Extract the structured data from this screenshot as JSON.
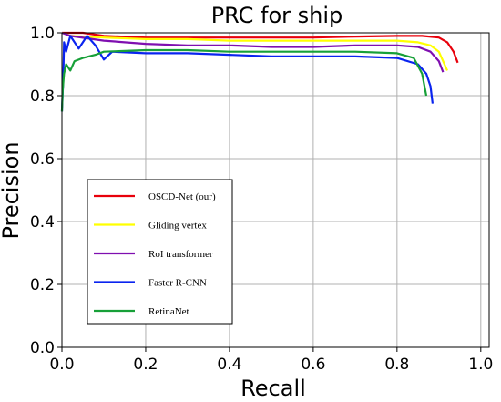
{
  "chart_data": {
    "type": "line",
    "title": "PRC for ship",
    "xlabel": "Recall",
    "ylabel": "Precision",
    "xlim": [
      0,
      1.02
    ],
    "ylim": [
      0,
      1.0
    ],
    "xticks": [
      0.0,
      0.2,
      0.4,
      0.6,
      0.8,
      1.0
    ],
    "yticks": [
      0.0,
      0.2,
      0.4,
      0.6,
      0.8,
      1.0
    ],
    "xtick_labels": [
      "0.0",
      "0.2",
      "0.4",
      "0.6",
      "0.8",
      "1.0"
    ],
    "ytick_labels": [
      "0.0",
      "0.2",
      "0.4",
      "0.6",
      "0.8",
      "1.0"
    ],
    "grid": true,
    "legend_position": "lower-left",
    "series": [
      {
        "name": "OSCD-Net (our)",
        "color": "#e8000b",
        "x": [
          0.0,
          0.005,
          0.02,
          0.05,
          0.1,
          0.2,
          0.3,
          0.4,
          0.5,
          0.6,
          0.7,
          0.8,
          0.86,
          0.9,
          0.92,
          0.935,
          0.945
        ],
        "y": [
          1.0,
          1.0,
          1.0,
          1.0,
          0.99,
          0.985,
          0.985,
          0.985,
          0.985,
          0.985,
          0.988,
          0.99,
          0.99,
          0.985,
          0.97,
          0.94,
          0.905
        ]
      },
      {
        "name": "Gliding vertex",
        "color": "#ffff00",
        "x": [
          0.0,
          0.02,
          0.1,
          0.2,
          0.3,
          0.4,
          0.5,
          0.6,
          0.7,
          0.8,
          0.85,
          0.88,
          0.9,
          0.91,
          0.92
        ],
        "y": [
          1.0,
          0.99,
          0.985,
          0.98,
          0.98,
          0.975,
          0.975,
          0.975,
          0.975,
          0.975,
          0.97,
          0.96,
          0.94,
          0.91,
          0.88
        ]
      },
      {
        "name": "RoI transformer",
        "color": "#7f0fb0",
        "x": [
          0.0,
          0.02,
          0.1,
          0.2,
          0.3,
          0.4,
          0.5,
          0.6,
          0.7,
          0.8,
          0.85,
          0.88,
          0.9,
          0.91
        ],
        "y": [
          1.0,
          0.99,
          0.975,
          0.965,
          0.96,
          0.96,
          0.955,
          0.955,
          0.96,
          0.96,
          0.955,
          0.94,
          0.91,
          0.875
        ]
      },
      {
        "name": "Faster R-CNN",
        "color": "#0a24ef",
        "x": [
          0.0,
          0.003,
          0.005,
          0.01,
          0.02,
          0.04,
          0.06,
          0.08,
          0.1,
          0.12,
          0.2,
          0.3,
          0.4,
          0.5,
          0.6,
          0.7,
          0.8,
          0.85,
          0.87,
          0.88,
          0.885
        ],
        "y": [
          0.75,
          0.85,
          0.97,
          0.94,
          0.99,
          0.95,
          0.99,
          0.96,
          0.915,
          0.94,
          0.935,
          0.935,
          0.93,
          0.925,
          0.925,
          0.925,
          0.92,
          0.9,
          0.87,
          0.83,
          0.775
        ]
      },
      {
        "name": "RetinaNet",
        "color": "#17a038",
        "x": [
          0.0,
          0.002,
          0.005,
          0.01,
          0.02,
          0.03,
          0.05,
          0.08,
          0.1,
          0.2,
          0.3,
          0.4,
          0.5,
          0.6,
          0.7,
          0.8,
          0.84,
          0.86,
          0.87
        ],
        "y": [
          0.75,
          0.82,
          0.87,
          0.9,
          0.88,
          0.91,
          0.92,
          0.93,
          0.94,
          0.945,
          0.945,
          0.94,
          0.94,
          0.94,
          0.94,
          0.935,
          0.92,
          0.87,
          0.8
        ]
      }
    ]
  }
}
